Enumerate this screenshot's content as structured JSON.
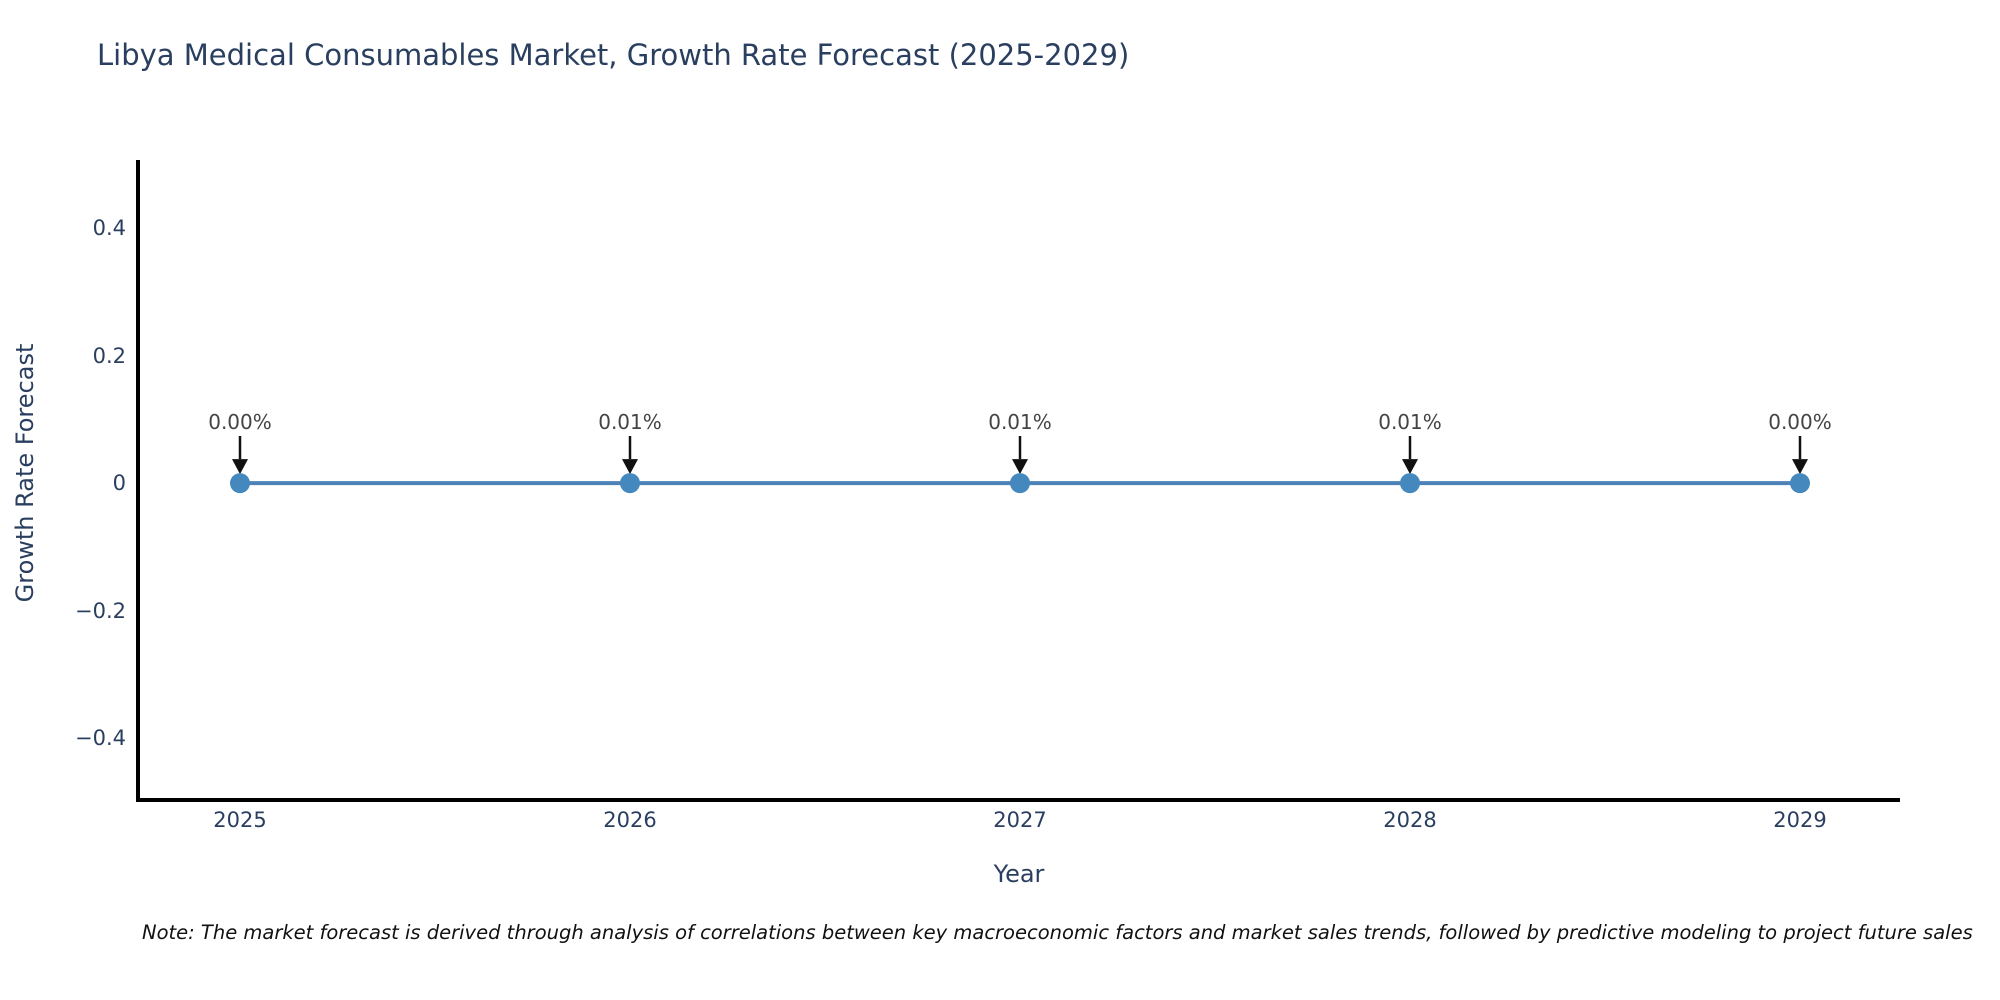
{
  "chart_data": {
    "type": "line",
    "title": "Libya Medical Consumables Market, Growth Rate Forecast (2025-2029)",
    "xlabel": "Year",
    "ylabel": "Growth Rate Forecast",
    "categories": [
      "2025",
      "2026",
      "2027",
      "2028",
      "2029"
    ],
    "values": [
      0.0,
      0.0001,
      0.0001,
      0.0001,
      0.0
    ],
    "point_labels": [
      "0.00%",
      "0.01%",
      "0.01%",
      "0.01%",
      "0.00%"
    ],
    "ylim": [
      -0.497,
      0.507
    ],
    "yticks": [
      0.4,
      0.2,
      0,
      -0.2,
      -0.4
    ],
    "ytick_labels": [
      "0.4",
      "0.2",
      "0",
      "−0.2",
      "−0.4"
    ],
    "grid": false,
    "legend": "none",
    "line_color": "#4d82b8",
    "marker_color": "#4488be",
    "axis_color": "#000000",
    "arrow_color": "#111111",
    "annotation_color": "#444444"
  },
  "footnote": "Note: The market forecast is derived through analysis of correlations between key macroeconomic factors and market sales trends, followed by predictive modeling to project future sales"
}
